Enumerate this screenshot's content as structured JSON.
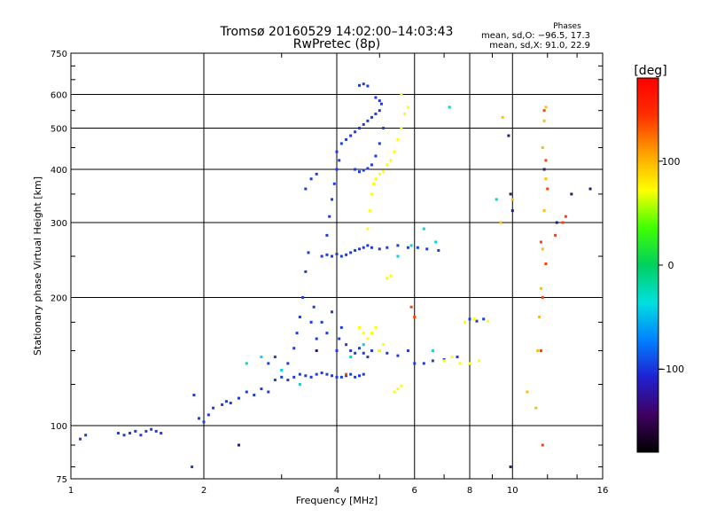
{
  "chart_data": {
    "type": "scatter",
    "title": "Tromsø 20160529 14:02:00–14:03:43",
    "subtitle": "RwPretec (8p)",
    "xlabel": "Frequency [MHz]",
    "ylabel": "Stationary phase Virtual Height [km]",
    "x_scale": "log",
    "y_scale": "log",
    "xlim": [
      1,
      16
    ],
    "ylim": [
      75,
      750
    ],
    "x_ticks": [
      1,
      2,
      4,
      6,
      8,
      10,
      16
    ],
    "y_ticks": [
      75,
      100,
      200,
      300,
      400,
      500,
      600,
      750
    ],
    "grid": true,
    "stats": {
      "heading": "Phases",
      "line_o": "mean, sd,O: −96.5, 17.3",
      "line_x": "mean, sd,X:  91.0, 22.9"
    },
    "colorbar": {
      "label": "[deg]",
      "range": [
        -180,
        180
      ],
      "ticks": [
        100,
        0,
        -100
      ],
      "colors": [
        "#000000",
        "#400060",
        "#2020d0",
        "#0080ff",
        "#00e0e0",
        "#00d060",
        "#40ff00",
        "#ffff00",
        "#ffa000",
        "#ff3000",
        "#ff0000"
      ]
    },
    "series": [
      {
        "color": "#1e3cdc",
        "phase": -100,
        "points": [
          [
            1.05,
            93
          ],
          [
            1.08,
            95
          ],
          [
            1.28,
            96
          ],
          [
            1.32,
            95
          ],
          [
            1.36,
            96
          ],
          [
            1.4,
            97
          ],
          [
            1.44,
            95
          ],
          [
            1.48,
            97
          ],
          [
            1.52,
            98
          ],
          [
            1.56,
            97
          ],
          [
            1.6,
            96
          ],
          [
            1.88,
            80
          ],
          [
            1.9,
            118
          ],
          [
            1.95,
            104
          ],
          [
            2.0,
            102
          ],
          [
            2.05,
            106
          ],
          [
            2.1,
            110
          ],
          [
            2.2,
            112
          ],
          [
            2.25,
            114
          ],
          [
            2.3,
            113
          ],
          [
            2.4,
            116
          ],
          [
            2.5,
            120
          ],
          [
            2.6,
            118
          ],
          [
            2.7,
            122
          ],
          [
            2.8,
            120
          ],
          [
            2.9,
            128
          ],
          [
            3.0,
            130
          ],
          [
            3.1,
            128
          ],
          [
            3.2,
            130
          ],
          [
            3.3,
            132
          ],
          [
            3.4,
            131
          ],
          [
            3.5,
            130
          ],
          [
            3.6,
            132
          ],
          [
            3.7,
            133
          ],
          [
            3.8,
            132
          ],
          [
            3.9,
            131
          ],
          [
            4.0,
            130
          ],
          [
            4.1,
            130
          ],
          [
            4.2,
            131
          ],
          [
            4.3,
            132
          ],
          [
            4.4,
            130
          ],
          [
            4.5,
            131
          ],
          [
            4.6,
            132
          ],
          [
            3.1,
            140
          ],
          [
            3.2,
            152
          ],
          [
            3.25,
            165
          ],
          [
            3.3,
            180
          ],
          [
            3.35,
            200
          ],
          [
            3.4,
            230
          ],
          [
            3.45,
            255
          ],
          [
            3.5,
            175
          ],
          [
            3.55,
            190
          ],
          [
            3.6,
            160
          ],
          [
            3.7,
            175
          ],
          [
            3.8,
            165
          ],
          [
            3.9,
            185
          ],
          [
            4.0,
            150
          ],
          [
            4.05,
            160
          ],
          [
            4.1,
            170
          ],
          [
            4.2,
            155
          ],
          [
            4.3,
            150
          ],
          [
            4.4,
            148
          ],
          [
            4.5,
            152
          ],
          [
            4.6,
            148
          ],
          [
            4.7,
            145
          ],
          [
            4.8,
            150
          ],
          [
            3.7,
            250
          ],
          [
            3.8,
            252
          ],
          [
            3.9,
            250
          ],
          [
            4.0,
            253
          ],
          [
            4.1,
            250
          ],
          [
            4.2,
            252
          ],
          [
            4.3,
            255
          ],
          [
            4.4,
            258
          ],
          [
            4.5,
            260
          ],
          [
            4.6,
            262
          ],
          [
            4.7,
            265
          ],
          [
            4.8,
            262
          ],
          [
            5.0,
            260
          ],
          [
            5.2,
            262
          ],
          [
            5.5,
            265
          ],
          [
            5.8,
            262
          ],
          [
            6.1,
            262
          ],
          [
            6.4,
            260
          ],
          [
            6.8,
            258
          ],
          [
            3.8,
            280
          ],
          [
            3.85,
            310
          ],
          [
            3.9,
            340
          ],
          [
            3.95,
            370
          ],
          [
            4.0,
            400
          ],
          [
            4.05,
            420
          ],
          [
            4.0,
            440
          ],
          [
            4.1,
            460
          ],
          [
            4.2,
            470
          ],
          [
            4.3,
            480
          ],
          [
            4.4,
            490
          ],
          [
            4.5,
            500
          ],
          [
            4.6,
            510
          ],
          [
            4.7,
            520
          ],
          [
            4.8,
            530
          ],
          [
            4.9,
            540
          ],
          [
            5.0,
            550
          ],
          [
            4.4,
            400
          ],
          [
            4.5,
            395
          ],
          [
            4.6,
            398
          ],
          [
            4.7,
            402
          ],
          [
            4.8,
            410
          ],
          [
            4.9,
            430
          ],
          [
            5.0,
            460
          ],
          [
            5.1,
            500
          ],
          [
            4.5,
            630
          ],
          [
            4.6,
            635
          ],
          [
            4.7,
            628
          ],
          [
            4.9,
            590
          ],
          [
            5.0,
            580
          ],
          [
            5.05,
            570
          ],
          [
            5.0,
            150
          ],
          [
            5.2,
            148
          ],
          [
            5.5,
            146
          ],
          [
            5.8,
            150
          ],
          [
            6.0,
            140
          ],
          [
            6.3,
            140
          ],
          [
            6.6,
            142
          ],
          [
            7.0,
            143
          ],
          [
            7.5,
            145
          ],
          [
            8.0,
            178
          ],
          [
            8.3,
            176
          ],
          [
            8.6,
            178
          ],
          [
            3.5,
            380
          ],
          [
            3.6,
            390
          ],
          [
            3.4,
            360
          ],
          [
            2.9,
            145
          ],
          [
            2.8,
            140
          ]
        ]
      },
      {
        "color": "#ffff00",
        "phase": 110,
        "points": [
          [
            4.5,
            170
          ],
          [
            4.6,
            165
          ],
          [
            4.7,
            160
          ],
          [
            4.8,
            165
          ],
          [
            4.9,
            170
          ],
          [
            5.0,
            150
          ],
          [
            5.1,
            155
          ],
          [
            5.2,
            222
          ],
          [
            5.3,
            225
          ],
          [
            5.4,
            120
          ],
          [
            5.5,
            122
          ],
          [
            5.6,
            124
          ],
          [
            4.7,
            290
          ],
          [
            4.75,
            320
          ],
          [
            4.8,
            350
          ],
          [
            4.85,
            370
          ],
          [
            4.9,
            380
          ],
          [
            5.0,
            390
          ],
          [
            5.1,
            395
          ],
          [
            5.2,
            410
          ],
          [
            5.3,
            420
          ],
          [
            5.4,
            440
          ],
          [
            5.5,
            470
          ],
          [
            5.6,
            500
          ],
          [
            5.7,
            540
          ],
          [
            5.8,
            560
          ],
          [
            5.6,
            600
          ],
          [
            7.0,
            142
          ],
          [
            7.3,
            145
          ],
          [
            7.6,
            140
          ],
          [
            8.0,
            140
          ],
          [
            8.4,
            142
          ],
          [
            7.8,
            175
          ],
          [
            8.2,
            178
          ],
          [
            8.8,
            176
          ]
        ]
      },
      {
        "color": "#00d8d8",
        "phase": 10,
        "points": [
          [
            2.5,
            140
          ],
          [
            2.7,
            145
          ],
          [
            3.0,
            135
          ],
          [
            3.3,
            125
          ],
          [
            4.3,
            145
          ],
          [
            4.6,
            155
          ],
          [
            5.5,
            250
          ],
          [
            5.9,
            265
          ],
          [
            6.3,
            290
          ],
          [
            6.7,
            270
          ],
          [
            7.2,
            560
          ],
          [
            9.2,
            340
          ],
          [
            6.6,
            150
          ]
        ]
      },
      {
        "color": "#ff4000",
        "phase": 160,
        "points": [
          [
            4.2,
            132
          ],
          [
            5.9,
            190
          ],
          [
            6.0,
            180
          ],
          [
            11.6,
            150
          ],
          [
            11.7,
            200
          ],
          [
            11.8,
            550
          ],
          [
            11.9,
            420
          ],
          [
            12.0,
            360
          ],
          [
            11.6,
            270
          ],
          [
            13.0,
            300
          ],
          [
            13.2,
            310
          ],
          [
            12.5,
            280
          ],
          [
            11.9,
            240
          ],
          [
            11.7,
            90
          ]
        ]
      },
      {
        "color": "#ffc000",
        "phase": 120,
        "points": [
          [
            11.4,
            150
          ],
          [
            11.5,
            180
          ],
          [
            11.6,
            210
          ],
          [
            11.7,
            260
          ],
          [
            11.8,
            320
          ],
          [
            11.9,
            380
          ],
          [
            11.7,
            450
          ],
          [
            11.8,
            520
          ],
          [
            11.9,
            560
          ],
          [
            10.8,
            120
          ],
          [
            11.3,
            110
          ],
          [
            9.5,
            530
          ],
          [
            10.0,
            340
          ],
          [
            9.4,
            300
          ]
        ]
      },
      {
        "color": "#20206a",
        "phase": -140,
        "points": [
          [
            9.8,
            480
          ],
          [
            9.9,
            350
          ],
          [
            10.0,
            320
          ],
          [
            11.8,
            400
          ],
          [
            12.6,
            300
          ],
          [
            13.6,
            350
          ],
          [
            15.0,
            360
          ],
          [
            9.9,
            80
          ],
          [
            2.4,
            90
          ],
          [
            3.6,
            150
          ]
        ]
      }
    ]
  }
}
